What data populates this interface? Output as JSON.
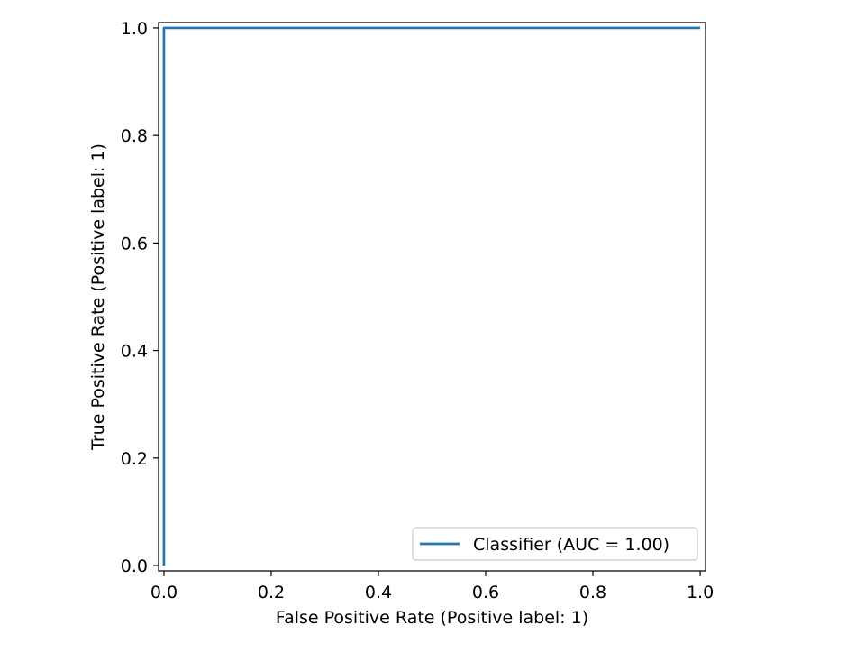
{
  "chart_data": {
    "type": "line",
    "xlabel": "False Positive Rate (Positive label: 1)",
    "ylabel": "True Positive Rate (Positive label: 1)",
    "xlim": [
      -0.01,
      1.01
    ],
    "ylim": [
      -0.01,
      1.01
    ],
    "xticks": [
      0.0,
      0.2,
      0.4,
      0.6,
      0.8,
      1.0
    ],
    "xtick_labels": [
      "0.0",
      "0.2",
      "0.4",
      "0.6",
      "0.8",
      "1.0"
    ],
    "yticks": [
      0.0,
      0.2,
      0.4,
      0.6,
      0.8,
      1.0
    ],
    "ytick_labels": [
      "0.0",
      "0.2",
      "0.4",
      "0.6",
      "0.8",
      "1.0"
    ],
    "grid": false,
    "legend_position": "lower-right",
    "series": [
      {
        "name": "Classifier (AUC = 1.00)",
        "color": "#1f77b4",
        "x": [
          0.0,
          0.0,
          1.0
        ],
        "y": [
          0.0,
          1.0,
          1.0
        ]
      }
    ]
  }
}
